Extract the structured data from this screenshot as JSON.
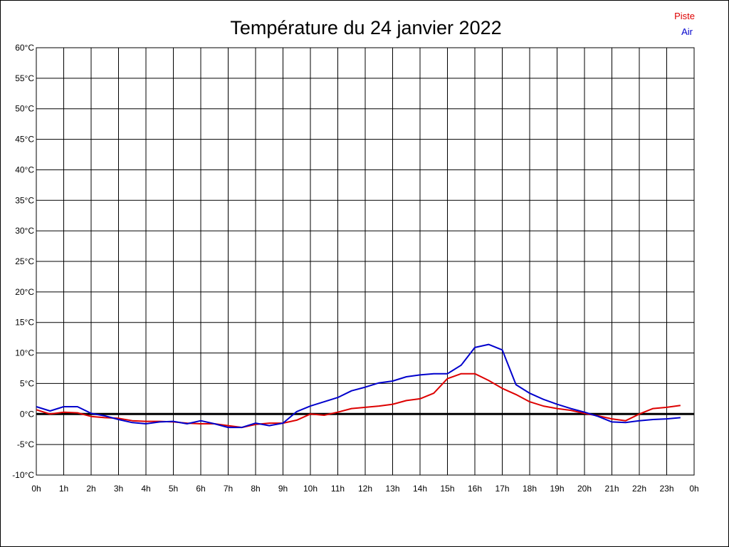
{
  "chart_data": {
    "type": "line",
    "title": "Température du 24 janvier 2022",
    "xlabel": "",
    "ylabel": "",
    "x_ticks": [
      "0h",
      "1h",
      "2h",
      "3h",
      "4h",
      "5h",
      "6h",
      "7h",
      "8h",
      "9h",
      "10h",
      "11h",
      "12h",
      "13h",
      "14h",
      "15h",
      "16h",
      "17h",
      "18h",
      "19h",
      "20h",
      "21h",
      "22h",
      "23h",
      "0h"
    ],
    "y_ticks": [
      "-10°C",
      "-5°C",
      "0°C",
      "5°C",
      "10°C",
      "15°C",
      "20°C",
      "25°C",
      "30°C",
      "35°C",
      "40°C",
      "45°C",
      "50°C",
      "55°C",
      "60°C"
    ],
    "xlim": [
      0,
      24
    ],
    "ylim": [
      -10,
      60
    ],
    "grid": true,
    "legend_position": "top-right",
    "x": [
      0,
      0.5,
      1,
      1.5,
      2,
      2.5,
      3,
      3.5,
      4,
      4.5,
      5,
      5.5,
      6,
      6.5,
      7,
      7.5,
      8,
      8.5,
      9,
      9.5,
      10,
      10.5,
      11,
      11.5,
      12,
      12.5,
      13,
      13.5,
      14,
      14.5,
      15,
      15.5,
      16,
      16.5,
      17,
      17.5,
      18,
      18.5,
      19,
      19.5,
      20,
      20.5,
      21,
      21.5,
      22,
      22.5,
      23,
      23.5
    ],
    "series": [
      {
        "name": "Piste",
        "color": "#dd0000",
        "values": [
          0.7,
          0.0,
          0.3,
          0.2,
          -0.4,
          -0.6,
          -0.7,
          -1.1,
          -1.2,
          -1.2,
          -1.3,
          -1.5,
          -1.6,
          -1.6,
          -1.9,
          -2.2,
          -1.7,
          -1.5,
          -1.5,
          -1.0,
          0.0,
          -0.2,
          0.3,
          0.9,
          1.1,
          1.3,
          1.6,
          2.2,
          2.5,
          3.4,
          5.8,
          6.6,
          6.6,
          5.5,
          4.2,
          3.2,
          2.0,
          1.3,
          0.9,
          0.6,
          0.1,
          -0.3,
          -0.8,
          -1.1,
          0.0,
          0.9,
          1.1,
          1.4
        ]
      },
      {
        "name": "Air",
        "color": "#0000cc",
        "values": [
          1.2,
          0.5,
          1.2,
          1.2,
          0.1,
          -0.3,
          -0.9,
          -1.4,
          -1.6,
          -1.3,
          -1.2,
          -1.6,
          -1.1,
          -1.6,
          -2.2,
          -2.2,
          -1.5,
          -1.9,
          -1.5,
          0.4,
          1.3,
          2.0,
          2.7,
          3.8,
          4.4,
          5.1,
          5.4,
          6.1,
          6.4,
          6.6,
          6.6,
          8.0,
          10.9,
          11.4,
          10.5,
          4.8,
          3.4,
          2.4,
          1.6,
          0.9,
          0.3,
          -0.4,
          -1.3,
          -1.4,
          -1.1,
          -0.9,
          -0.8,
          -0.6
        ]
      }
    ]
  }
}
